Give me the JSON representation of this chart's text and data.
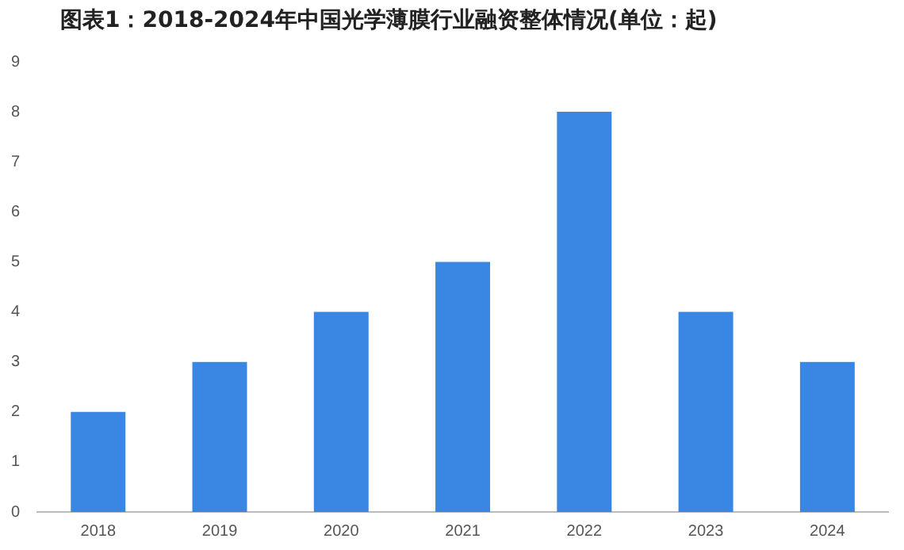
{
  "chart_data": {
    "type": "bar",
    "title": "图表1：2018-2024年中国光学薄膜行业融资整体情况(单位：起)",
    "categories": [
      "2018",
      "2019",
      "2020",
      "2021",
      "2022",
      "2023",
      "2024"
    ],
    "values": [
      2,
      3,
      4,
      5,
      8,
      4,
      3
    ],
    "color": "#3a87e3",
    "ylim": [
      0,
      9
    ],
    "yticks": [
      0,
      1,
      2,
      3,
      4,
      5,
      6,
      7,
      8,
      9
    ],
    "grid": false,
    "legend": false
  }
}
